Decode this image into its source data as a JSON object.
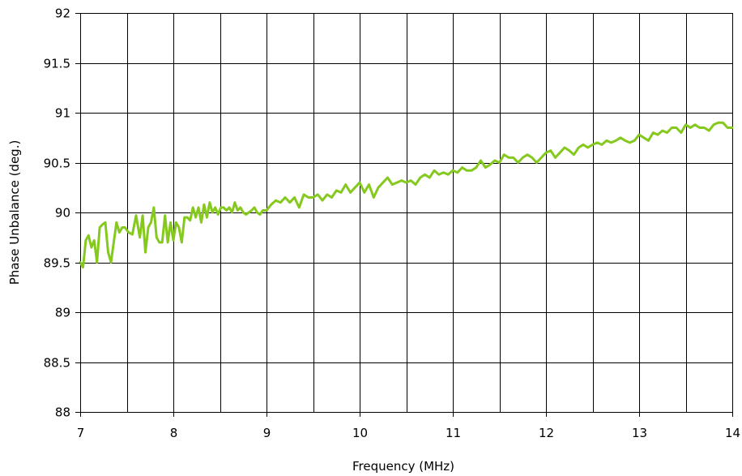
{
  "chart_data": {
    "type": "line",
    "title": "",
    "xlabel": "Frequency (MHz)",
    "ylabel": "Phase Unbalance (deg.)",
    "xlim": [
      7,
      14
    ],
    "ylim": [
      88,
      92
    ],
    "xticks": [
      7,
      8,
      9,
      10,
      11,
      12,
      13,
      14
    ],
    "yticks": [
      88,
      88.5,
      89,
      89.5,
      90,
      90.5,
      91,
      91.5,
      92
    ],
    "x_gridlines": [
      7,
      7.5,
      8,
      8.5,
      9,
      9.5,
      10,
      10.5,
      11,
      11.5,
      12,
      12.5,
      13,
      13.5,
      14
    ],
    "y_gridlines": [
      88,
      88.5,
      89,
      89.5,
      90,
      90.5,
      91,
      91.5,
      92
    ],
    "grid": true,
    "legend": false,
    "series_color": "#86c91e",
    "series": [
      {
        "x": [
          7.0,
          7.03,
          7.06,
          7.09,
          7.12,
          7.15,
          7.18,
          7.21,
          7.24,
          7.27,
          7.3,
          7.33,
          7.36,
          7.39,
          7.42,
          7.45,
          7.48,
          7.52,
          7.56,
          7.6,
          7.64,
          7.67,
          7.7,
          7.73,
          7.76,
          7.79,
          7.82,
          7.85,
          7.88,
          7.91,
          7.94,
          7.97,
          8.0,
          8.03,
          8.06,
          8.09,
          8.12,
          8.15,
          8.18,
          8.21,
          8.24,
          8.27,
          8.3,
          8.33,
          8.36,
          8.39,
          8.42,
          8.45,
          8.48,
          8.51,
          8.54,
          8.57,
          8.6,
          8.63,
          8.66,
          8.69,
          8.72,
          8.75,
          8.78,
          8.81,
          8.84,
          8.87,
          8.9,
          8.93,
          8.96,
          9.0,
          9.05,
          9.1,
          9.15,
          9.2,
          9.25,
          9.3,
          9.35,
          9.4,
          9.45,
          9.5,
          9.55,
          9.6,
          9.65,
          9.7,
          9.75,
          9.8,
          9.85,
          9.9,
          9.95,
          10.0,
          10.05,
          10.1,
          10.15,
          10.2,
          10.25,
          10.3,
          10.35,
          10.4,
          10.45,
          10.5,
          10.55,
          10.6,
          10.65,
          10.7,
          10.75,
          10.8,
          10.85,
          10.9,
          10.95,
          11.0,
          11.05,
          11.1,
          11.15,
          11.2,
          11.25,
          11.3,
          11.35,
          11.4,
          11.45,
          11.5,
          11.55,
          11.6,
          11.65,
          11.7,
          11.75,
          11.8,
          11.85,
          11.9,
          11.95,
          12.0,
          12.05,
          12.1,
          12.15,
          12.2,
          12.25,
          12.3,
          12.35,
          12.4,
          12.45,
          12.5,
          12.55,
          12.6,
          12.65,
          12.7,
          12.75,
          12.8,
          12.85,
          12.9,
          12.95,
          13.0,
          13.05,
          13.1,
          13.15,
          13.2,
          13.25,
          13.3,
          13.35,
          13.4,
          13.45,
          13.5,
          13.55,
          13.6,
          13.65,
          13.7,
          13.75,
          13.8,
          13.85,
          13.9,
          13.95,
          14.0
        ],
        "y": [
          89.5,
          89.45,
          89.72,
          89.77,
          89.65,
          89.72,
          89.5,
          89.85,
          89.88,
          89.9,
          89.6,
          89.5,
          89.7,
          89.9,
          89.8,
          89.85,
          89.85,
          89.8,
          89.78,
          89.97,
          89.75,
          89.97,
          89.6,
          89.85,
          89.9,
          90.05,
          89.75,
          89.7,
          89.7,
          89.97,
          89.7,
          89.9,
          89.72,
          89.9,
          89.85,
          89.7,
          89.95,
          89.95,
          89.92,
          90.05,
          89.95,
          90.05,
          89.9,
          90.08,
          89.95,
          90.1,
          90.0,
          90.05,
          89.98,
          90.05,
          90.05,
          90.02,
          90.05,
          90.0,
          90.1,
          90.02,
          90.05,
          90.0,
          89.98,
          90.0,
          90.02,
          90.05,
          90.0,
          89.98,
          90.02,
          90.02,
          90.08,
          90.12,
          90.1,
          90.15,
          90.1,
          90.15,
          90.05,
          90.18,
          90.15,
          90.15,
          90.18,
          90.12,
          90.18,
          90.15,
          90.22,
          90.2,
          90.28,
          90.2,
          90.25,
          90.3,
          90.2,
          90.28,
          90.15,
          90.25,
          90.3,
          90.35,
          90.28,
          90.3,
          90.32,
          90.3,
          90.32,
          90.28,
          90.35,
          90.38,
          90.35,
          90.42,
          90.38,
          90.4,
          90.38,
          90.42,
          90.4,
          90.45,
          90.42,
          90.42,
          90.45,
          90.52,
          90.45,
          90.48,
          90.52,
          90.5,
          90.58,
          90.55,
          90.55,
          90.5,
          90.55,
          90.58,
          90.55,
          90.5,
          90.55,
          90.6,
          90.62,
          90.55,
          90.6,
          90.65,
          90.62,
          90.58,
          90.65,
          90.68,
          90.65,
          90.68,
          90.7,
          90.68,
          90.72,
          90.7,
          90.72,
          90.75,
          90.72,
          90.7,
          90.72,
          90.78,
          90.75,
          90.72,
          90.8,
          90.78,
          90.82,
          90.8,
          90.85,
          90.85,
          90.8,
          90.88,
          90.85,
          90.88,
          90.85,
          90.85,
          90.82,
          90.88,
          90.9,
          90.9,
          90.85,
          90.85
        ]
      }
    ]
  }
}
